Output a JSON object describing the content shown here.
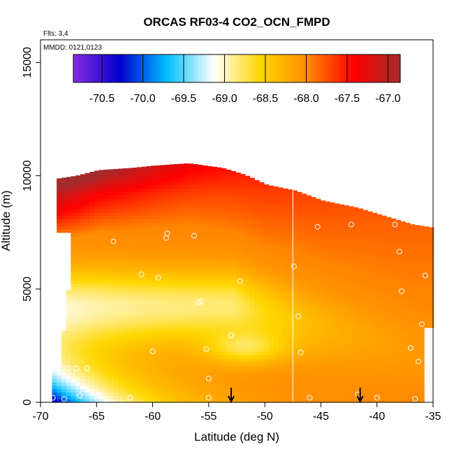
{
  "chart_data": {
    "type": "heatmap",
    "title": "ORCAS RF03-4 CO2_OCN_FMPD",
    "xlabel": "Latitude (deg N)",
    "ylabel": "Altitude (m)",
    "annotations": [
      "Flts: 3,4",
      "MMDD: 0121,0123"
    ],
    "xlim": [
      -70,
      -35
    ],
    "ylim": [
      0,
      16000
    ],
    "x_ticks": [
      -70,
      -65,
      -60,
      -55,
      -50,
      -45,
      -40,
      -35
    ],
    "y_ticks": [
      0,
      5000,
      10000,
      15000
    ],
    "colorbar": {
      "range": [
        -70.85,
        -66.85
      ],
      "ticks": [
        -70.5,
        -70.0,
        -69.5,
        -69.0,
        -68.5,
        -68.0,
        -67.5,
        -67.0
      ],
      "tick_labels": [
        "-70.5",
        "-70.0",
        "-69.5",
        "-69.0",
        "-68.5",
        "-68.0",
        "-67.5",
        "-67.0"
      ],
      "colors": [
        "#8a2be2",
        "#0000cd",
        "#00bfff",
        "#ffffff",
        "#ffd700",
        "#ff8c00",
        "#ff0000",
        "#a52a2a"
      ]
    },
    "grid": false,
    "ceiling": [
      [
        -69,
        9850
      ],
      [
        -67,
        10000
      ],
      [
        -65,
        10250
      ],
      [
        -62,
        10350
      ],
      [
        -60,
        10450
      ],
      [
        -57,
        10550
      ],
      [
        -54,
        10350
      ],
      [
        -52,
        10050
      ],
      [
        -50,
        9600
      ],
      [
        -47.5,
        9350
      ],
      [
        -45,
        8900
      ],
      [
        -42,
        8600
      ],
      [
        -39,
        8150
      ],
      [
        -37,
        7850
      ],
      [
        -35,
        7700
      ]
    ],
    "samples_alt": [
      7800,
      7500,
      7400,
      7200,
      6900,
      6700,
      6300,
      6000,
      5700,
      5400,
      5000,
      4500,
      4200,
      3800,
      3300,
      2800,
      2400,
      2200,
      1800,
      1500,
      1200,
      900,
      600,
      300,
      150
    ],
    "flight_points": [
      [
        -68.8,
        1850
      ],
      [
        -68.2,
        1500
      ],
      [
        -67.5,
        1500
      ],
      [
        -66.8,
        1500
      ],
      [
        -65.8,
        1500
      ],
      [
        -68.9,
        200
      ],
      [
        -67.9,
        150
      ],
      [
        -66.5,
        300
      ],
      [
        -64.8,
        350
      ],
      [
        -62.0,
        200
      ],
      [
        -60.0,
        2250
      ],
      [
        -59.5,
        5500
      ],
      [
        -61.0,
        5650
      ],
      [
        -58.8,
        7250
      ],
      [
        -58.7,
        7450
      ],
      [
        -56.3,
        7350
      ],
      [
        -55.7,
        4450
      ],
      [
        -55.9,
        4400
      ],
      [
        -55.2,
        2350
      ],
      [
        -55.0,
        1050
      ],
      [
        -53.0,
        2950
      ],
      [
        -52.2,
        5350
      ],
      [
        -47.4,
        6000
      ],
      [
        -47.0,
        3800
      ],
      [
        -46.8,
        2200
      ],
      [
        -46.0,
        200
      ],
      [
        -45.3,
        7750
      ],
      [
        -42.3,
        7850
      ],
      [
        -41.7,
        350
      ],
      [
        -40.0,
        200
      ],
      [
        -38.4,
        7850
      ],
      [
        -38.0,
        6650
      ],
      [
        -37.8,
        4900
      ],
      [
        -37.0,
        2400
      ],
      [
        -36.3,
        1800
      ],
      [
        -36.0,
        3450
      ],
      [
        -35.7,
        5600
      ],
      [
        -36.6,
        150
      ],
      [
        -68.0,
        6750
      ],
      [
        -69.0,
        9850
      ],
      [
        -63.5,
        7100
      ],
      [
        -55.0,
        200
      ]
    ],
    "vertical_line_x": -47.5,
    "arrow_x": [
      -53,
      -41.5
    ]
  }
}
